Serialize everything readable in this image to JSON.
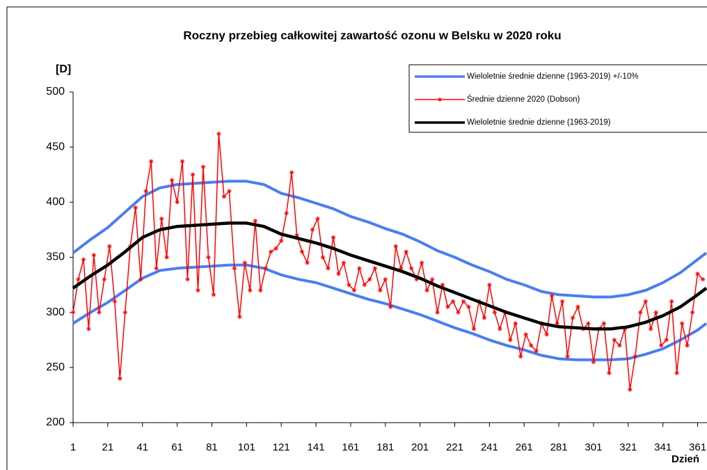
{
  "chart_data": {
    "type": "line",
    "title": "Roczny przebieg całkowitej zawartość ozonu w Belsku w 2020 roku",
    "y_label": "[D]",
    "x_label": "Dzień",
    "xlim": [
      1,
      366
    ],
    "ylim": [
      200,
      500
    ],
    "xticks": [
      1,
      21,
      41,
      61,
      81,
      101,
      121,
      141,
      161,
      181,
      201,
      221,
      241,
      261,
      281,
      301,
      321,
      341,
      361
    ],
    "yticks": [
      200,
      250,
      300,
      350,
      400,
      450,
      500
    ],
    "legend": "upper right",
    "x": [
      1,
      11,
      21,
      31,
      41,
      51,
      61,
      71,
      81,
      91,
      101,
      111,
      121,
      131,
      141,
      151,
      161,
      171,
      181,
      191,
      201,
      211,
      221,
      231,
      241,
      251,
      261,
      271,
      281,
      291,
      301,
      311,
      321,
      331,
      341,
      351,
      361,
      366
    ],
    "series": [
      {
        "name": "Wieloletnie średnie dzienne (1963-2019)  +/-10%",
        "color": "#4a7ef0",
        "values": [
          354,
          366,
          377,
          391,
          405,
          413,
          416,
          417,
          418,
          419,
          419,
          416,
          408,
          404,
          399,
          394,
          387,
          382,
          376,
          371,
          364,
          356,
          350,
          343,
          337,
          330,
          325,
          319,
          316,
          315,
          314,
          314,
          316,
          320,
          327,
          336,
          348,
          354
        ],
        "lower": [
          290,
          300,
          309,
          320,
          331,
          338,
          340,
          341,
          342,
          343,
          343,
          340,
          334,
          330,
          327,
          322,
          317,
          312,
          308,
          303,
          298,
          292,
          286,
          281,
          275,
          270,
          266,
          261,
          258,
          257,
          257,
          257,
          258,
          262,
          267,
          275,
          284,
          290
        ]
      },
      {
        "name": "Średnie dzienne 2020  (Dobson)",
        "color": "#ff0000",
        "x": [
          1,
          4,
          7,
          10,
          13,
          16,
          19,
          22,
          25,
          28,
          31,
          34,
          37,
          40,
          43,
          46,
          49,
          52,
          55,
          58,
          61,
          64,
          67,
          70,
          73,
          76,
          79,
          82,
          85,
          88,
          91,
          94,
          97,
          100,
          103,
          106,
          109,
          112,
          115,
          118,
          121,
          124,
          127,
          130,
          133,
          136,
          139,
          142,
          145,
          148,
          151,
          154,
          157,
          160,
          163,
          166,
          169,
          172,
          175,
          178,
          181,
          184,
          187,
          190,
          193,
          196,
          199,
          202,
          205,
          208,
          211,
          214,
          217,
          220,
          223,
          226,
          229,
          232,
          235,
          238,
          241,
          244,
          247,
          250,
          253,
          256,
          259,
          262,
          265,
          268,
          271,
          274,
          277,
          280,
          283,
          286,
          289,
          292,
          295,
          298,
          301,
          304,
          307,
          310,
          313,
          316,
          319,
          322,
          325,
          328,
          331,
          334,
          337,
          340,
          343,
          346,
          349,
          352,
          355,
          358,
          361,
          364
        ],
        "values": [
          300,
          330,
          348,
          285,
          352,
          300,
          330,
          360,
          310,
          240,
          300,
          360,
          395,
          330,
          410,
          437,
          340,
          385,
          350,
          420,
          400,
          437,
          330,
          425,
          320,
          432,
          350,
          316,
          462,
          405,
          410,
          340,
          296,
          345,
          320,
          383,
          320,
          340,
          355,
          358,
          365,
          390,
          427,
          370,
          355,
          345,
          375,
          385,
          350,
          340,
          368,
          335,
          345,
          325,
          320,
          340,
          325,
          330,
          340,
          320,
          330,
          305,
          360,
          340,
          355,
          340,
          330,
          345,
          320,
          330,
          300,
          325,
          305,
          310,
          300,
          310,
          305,
          285,
          310,
          295,
          325,
          300,
          285,
          300,
          275,
          290,
          260,
          280,
          270,
          265,
          290,
          280,
          315,
          290,
          310,
          260,
          295,
          305,
          285,
          290,
          255,
          285,
          290,
          245,
          275,
          270,
          285,
          230,
          260,
          300,
          310,
          285,
          300,
          270,
          275,
          310,
          245,
          290,
          270,
          300,
          335,
          330
        ]
      },
      {
        "name": "Wieloletnie średnie dzienne (1963-2019)",
        "color": "#000000",
        "values": [
          322,
          333,
          343,
          355,
          368,
          375,
          378,
          379,
          380,
          381,
          381,
          378,
          371,
          367,
          363,
          358,
          352,
          347,
          342,
          337,
          331,
          324,
          318,
          312,
          306,
          300,
          295,
          290,
          287,
          286,
          285,
          285,
          287,
          291,
          297,
          305,
          316,
          322
        ]
      }
    ]
  }
}
